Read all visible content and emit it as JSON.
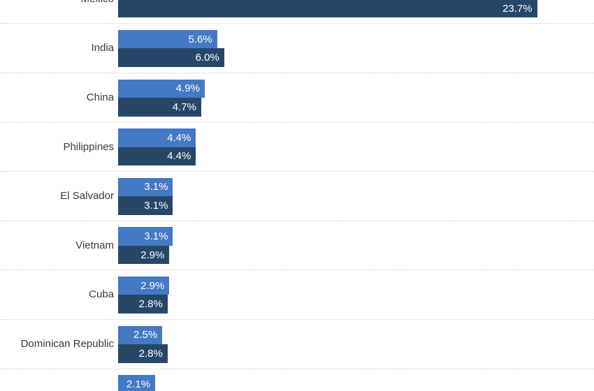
{
  "chart_data": {
    "type": "bar",
    "orientation": "horizontal",
    "unit": "%",
    "title": "",
    "xlabel": "",
    "ylabel": "",
    "categories": [
      "Mexico",
      "India",
      "China",
      "Philippines",
      "El Salvador",
      "Vietnam",
      "Cuba",
      "Dominican Republic",
      ""
    ],
    "series": [
      {
        "name": "series-light-blue",
        "color": "#4379C5",
        "values": [
          null,
          5.6,
          4.9,
          4.4,
          3.1,
          3.1,
          2.9,
          2.5,
          2.1
        ]
      },
      {
        "name": "series-dark-blue",
        "color": "#274769",
        "values": [
          23.7,
          6.0,
          4.7,
          4.4,
          3.1,
          2.9,
          2.8,
          2.8,
          null
        ]
      }
    ],
    "value_label_format": "{value}%",
    "visible_value_labels": [
      "23.7%",
      "5.6%",
      "6.0%",
      "4.9%",
      "4.7%",
      "4.4%",
      "4.4%",
      "3.1%",
      "3.1%",
      "3.1%",
      "2.9%",
      "2.9%",
      "2.8%",
      "2.5%",
      "2.8%",
      "2.1%"
    ],
    "layout_hints": {
      "legend": "none",
      "axes": "none (values labeled inside bars)",
      "grid": "dotted horizontal separators between category groups",
      "clipping": "Mexico light bar and label top cut off at viewport top; last category label and dark bar cut off at viewport bottom"
    }
  },
  "colors": {
    "background": "#ffffff",
    "bar_light": "#4379C5",
    "bar_dark": "#274769",
    "separator": "#cccccc",
    "label_text": "#3a3a3a",
    "value_text": "#ffffff"
  }
}
